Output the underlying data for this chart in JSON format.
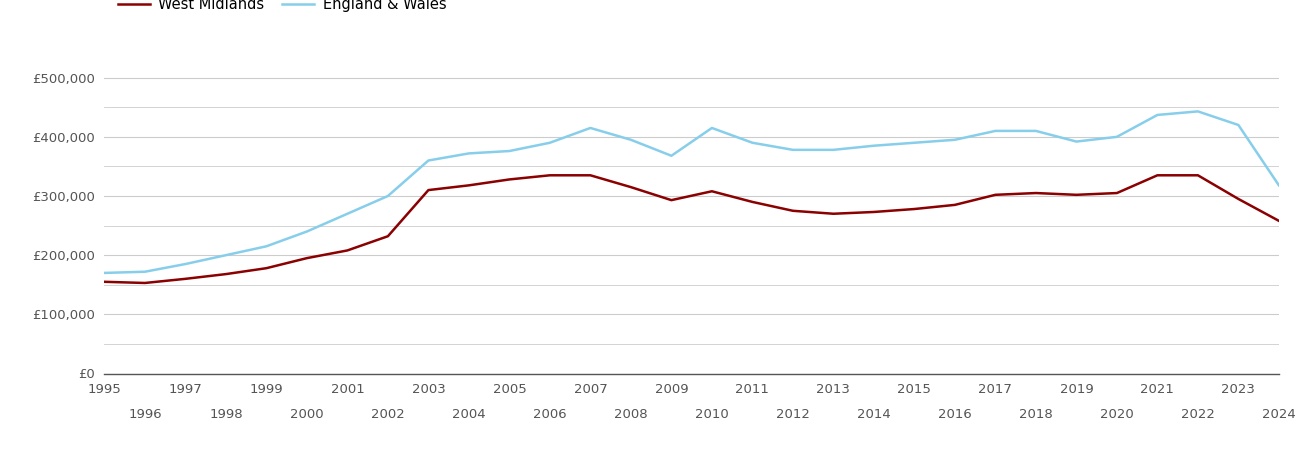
{
  "west_midlands": {
    "years": [
      1995,
      1996,
      1997,
      1998,
      1999,
      2000,
      2001,
      2002,
      2003,
      2004,
      2005,
      2006,
      2007,
      2008,
      2009,
      2010,
      2011,
      2012,
      2013,
      2014,
      2015,
      2016,
      2017,
      2018,
      2019,
      2020,
      2021,
      2022,
      2023,
      2024
    ],
    "values": [
      155000,
      153000,
      160000,
      168000,
      178000,
      195000,
      208000,
      232000,
      310000,
      318000,
      328000,
      335000,
      335000,
      315000,
      293000,
      308000,
      290000,
      275000,
      270000,
      273000,
      278000,
      285000,
      302000,
      305000,
      302000,
      305000,
      335000,
      335000,
      295000,
      258000
    ]
  },
  "england_wales": {
    "years": [
      1995,
      1996,
      1997,
      1998,
      1999,
      2000,
      2001,
      2002,
      2003,
      2004,
      2005,
      2006,
      2007,
      2008,
      2009,
      2010,
      2011,
      2012,
      2013,
      2014,
      2015,
      2016,
      2017,
      2018,
      2019,
      2020,
      2021,
      2022,
      2023,
      2024
    ],
    "values": [
      170000,
      172000,
      185000,
      200000,
      215000,
      240000,
      270000,
      300000,
      360000,
      372000,
      376000,
      390000,
      415000,
      395000,
      368000,
      415000,
      390000,
      378000,
      378000,
      385000,
      390000,
      395000,
      410000,
      410000,
      392000,
      400000,
      437000,
      443000,
      420000,
      318000
    ]
  },
  "wm_color": "#8B0000",
  "ew_color": "#87CEEB",
  "wm_label": "West Midlands",
  "ew_label": "England & Wales",
  "yticks_major": [
    0,
    100000,
    200000,
    300000,
    400000,
    500000
  ],
  "yticks_minor": [
    50000,
    150000,
    250000,
    350000,
    450000
  ],
  "ylim": [
    0,
    540000
  ],
  "xlim": [
    1995,
    2024
  ],
  "grid_color": "#cccccc",
  "background_color": "#ffffff",
  "line_width": 1.8,
  "xticks_odd": [
    1995,
    1997,
    1999,
    2001,
    2003,
    2005,
    2007,
    2009,
    2011,
    2013,
    2015,
    2017,
    2019,
    2021,
    2023
  ],
  "xticks_even": [
    1996,
    1998,
    2000,
    2002,
    2004,
    2006,
    2008,
    2010,
    2012,
    2014,
    2016,
    2018,
    2020,
    2022,
    2024
  ],
  "tick_label_color": "#555555",
  "tick_label_size": 9.5
}
